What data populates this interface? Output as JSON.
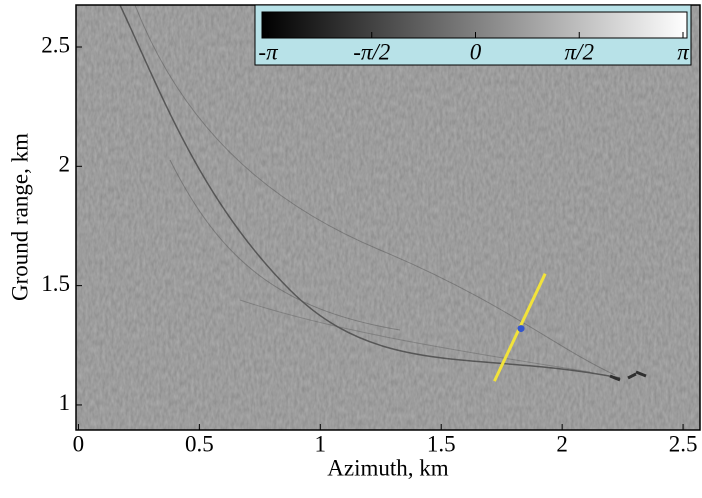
{
  "chart_data": {
    "type": "image",
    "xlabel": "Azimuth, km",
    "ylabel": "Ground range, km",
    "xlim": [
      -0.01,
      2.57
    ],
    "ylim": [
      0.895,
      2.676
    ],
    "xticks": [
      0,
      0.5,
      1,
      1.5,
      2,
      2.5
    ],
    "yticks": [
      1,
      1.5,
      2,
      2.5
    ],
    "background": "#8c8c8c",
    "colorbar": {
      "colormap": [
        "#000000",
        "#ffffff"
      ],
      "clim": [
        -3.1416,
        3.1416
      ],
      "ticks": [
        {
          "value": -3.1416,
          "label": "-π"
        },
        {
          "value": -1.5708,
          "label": "-π/2"
        },
        0,
        {
          "value": 1.5708,
          "label": "π/2"
        },
        {
          "value": 3.1416,
          "label": "π"
        }
      ]
    },
    "transect": {
      "x": [
        1.72,
        1.93
      ],
      "y": [
        1.1,
        1.55
      ],
      "color": "#f2e33a"
    },
    "point": {
      "x": 1.83,
      "y": 1.32,
      "color": "#3355cc"
    }
  }
}
